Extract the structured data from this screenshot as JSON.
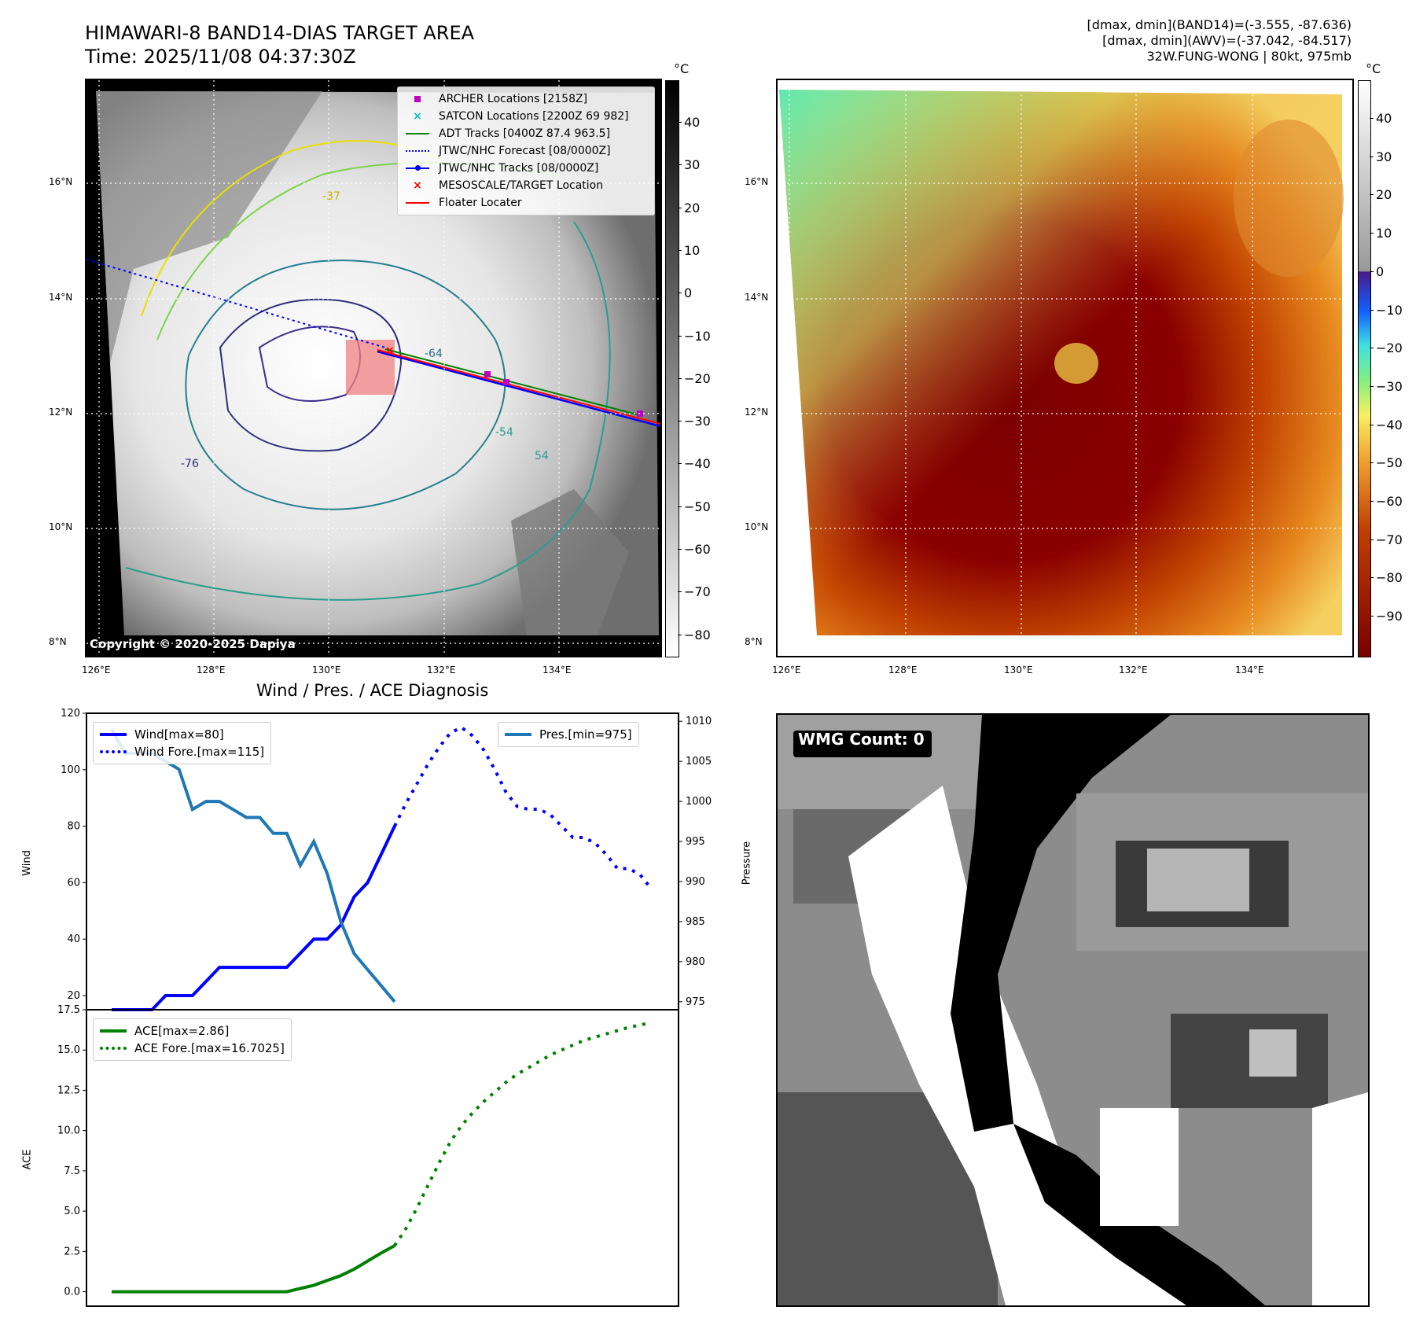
{
  "left_map": {
    "title": "HIMAWARI-8 BAND14-DIAS TARGET AREA",
    "time": "Time: 2025/11/08 04:37:30Z",
    "unit": "°C",
    "copyright": "Copyright © 2020-2025 Dapiya",
    "lat_labels": [
      "16°N",
      "14°N",
      "12°N",
      "10°N",
      "8°N"
    ],
    "lon_labels": [
      "126°E",
      "128°E",
      "130°E",
      "132°E",
      "134°E"
    ],
    "colorbar_ticks": [
      "40",
      "30",
      "20",
      "10",
      "0",
      "−10",
      "−20",
      "−30",
      "−40",
      "−50",
      "−60",
      "−70",
      "−80"
    ],
    "contour_labels": [
      "-64",
      "-76",
      "-54",
      "-37",
      "54"
    ],
    "legend": [
      {
        "label": "ARCHER Locations [2158Z]",
        "color": "#c000c0",
        "marker": "square"
      },
      {
        "label": "SATCON Locations [2200Z 69 982]",
        "color": "#00c0c0",
        "marker": "x"
      },
      {
        "label": "ADT Tracks [0400Z 87.4 963.5]",
        "color": "#008000",
        "marker": "line"
      },
      {
        "label": "JTWC/NHC Forecast [08/0000Z]",
        "color": "#0000ff",
        "marker": "dotted"
      },
      {
        "label": "JTWC/NHC Tracks [08/0000Z]",
        "color": "#0000ff",
        "marker": "line-dot"
      },
      {
        "label": "MESOSCALE/TARGET Location",
        "color": "#ff0000",
        "marker": "x"
      },
      {
        "label": "Floater Locater",
        "color": "#ff0000",
        "marker": "line"
      }
    ]
  },
  "right_map": {
    "stats": [
      "[dmax, dmin](BAND14)=(-3.555, -87.636)",
      "[dmax, dmin](AWV)=(-37.042, -84.517)",
      "32W.FUNG-WONG | 80kt, 975mb"
    ],
    "unit": "°C",
    "lat_labels": [
      "16°N",
      "14°N",
      "12°N",
      "10°N",
      "8°N"
    ],
    "lon_labels": [
      "126°E",
      "128°E",
      "130°E",
      "132°E",
      "134°E"
    ],
    "colorbar_ticks": [
      "40",
      "30",
      "20",
      "10",
      "0",
      "−10",
      "−20",
      "−30",
      "−40",
      "−50",
      "−60",
      "−70",
      "−80",
      "−90"
    ]
  },
  "wmg_panel": {
    "label": "WMG Count: 0"
  },
  "chart_data": [
    {
      "type": "line",
      "title": "Wind / Pres. / ACE Diagnosis",
      "ylabel": "Wind",
      "y2label": "Pressure",
      "ylim": [
        15,
        120
      ],
      "y2lim": [
        974,
        1011
      ],
      "xlim": [
        -11.2,
        252.4
      ],
      "yticks": [
        "20",
        "40",
        "60",
        "80",
        "100",
        "120"
      ],
      "y2ticks": [
        "975",
        "980",
        "985",
        "990",
        "995",
        "1000",
        "1005",
        "1010"
      ],
      "legend_left": [
        "Wind[max=80]",
        "Wind Fore.[max=115]"
      ],
      "legend_right": [
        "Pres.[min=975]"
      ],
      "series": [
        {
          "name": "Wind[max=80]",
          "color": "#0000ff",
          "style": "solid",
          "x0": 0,
          "dx": 6,
          "values": [
            15,
            15,
            15,
            15,
            20,
            20,
            20,
            25,
            30,
            30,
            30,
            30,
            30,
            30,
            35,
            40,
            40,
            45,
            55,
            60,
            70,
            80
          ]
        },
        {
          "name": "Wind Fore.[max=115]",
          "color": "#0000ff",
          "style": "dotted",
          "x0": 126,
          "dx": 4.96,
          "values": [
            80,
            88,
            95,
            102,
            108,
            113,
            115,
            112,
            107,
            100,
            92,
            87,
            86,
            86,
            84,
            80,
            76,
            76,
            74,
            70,
            65,
            65,
            63,
            58
          ]
        },
        {
          "name": "Pres.[min=975]",
          "color": "#1f77b4",
          "style": "solid",
          "axis": "right",
          "x0": 0,
          "dx": 6,
          "values": [
            1009,
            1006,
            1006,
            1006,
            1005,
            1004,
            999,
            1000,
            1000,
            999,
            998,
            998,
            996,
            996,
            992,
            995,
            991,
            985,
            981,
            979,
            977,
            975
          ]
        }
      ]
    },
    {
      "type": "line",
      "ylabel": "ACE",
      "ylim": [
        -0.9,
        17.5
      ],
      "xlim": [
        -11.2,
        252.4
      ],
      "yticks": [
        "0.0",
        "2.5",
        "5.0",
        "7.5",
        "10.0",
        "12.5",
        "15.0",
        "17.5"
      ],
      "legend": [
        "ACE[max=2.86]",
        "ACE Fore.[max=16.7025]"
      ],
      "series": [
        {
          "name": "ACE[max=2.86]",
          "color": "#008000",
          "style": "solid",
          "x0": 0,
          "dx": 6,
          "values": [
            0,
            0,
            0,
            0,
            0,
            0,
            0,
            0,
            0,
            0,
            0,
            0,
            0,
            0,
            0.2,
            0.4,
            0.7,
            1.0,
            1.4,
            1.9,
            2.4,
            2.86
          ]
        },
        {
          "name": "ACE Fore.[max=16.7025]",
          "color": "#008000",
          "style": "dotted",
          "x0": 126,
          "dx": 4.96,
          "values": [
            2.86,
            3.9,
            5.2,
            6.6,
            8.0,
            9.3,
            10.3,
            11.1,
            11.8,
            12.4,
            13.0,
            13.5,
            13.9,
            14.3,
            14.7,
            15.0,
            15.3,
            15.6,
            15.8,
            16.0,
            16.2,
            16.4,
            16.55,
            16.7
          ]
        }
      ]
    }
  ]
}
